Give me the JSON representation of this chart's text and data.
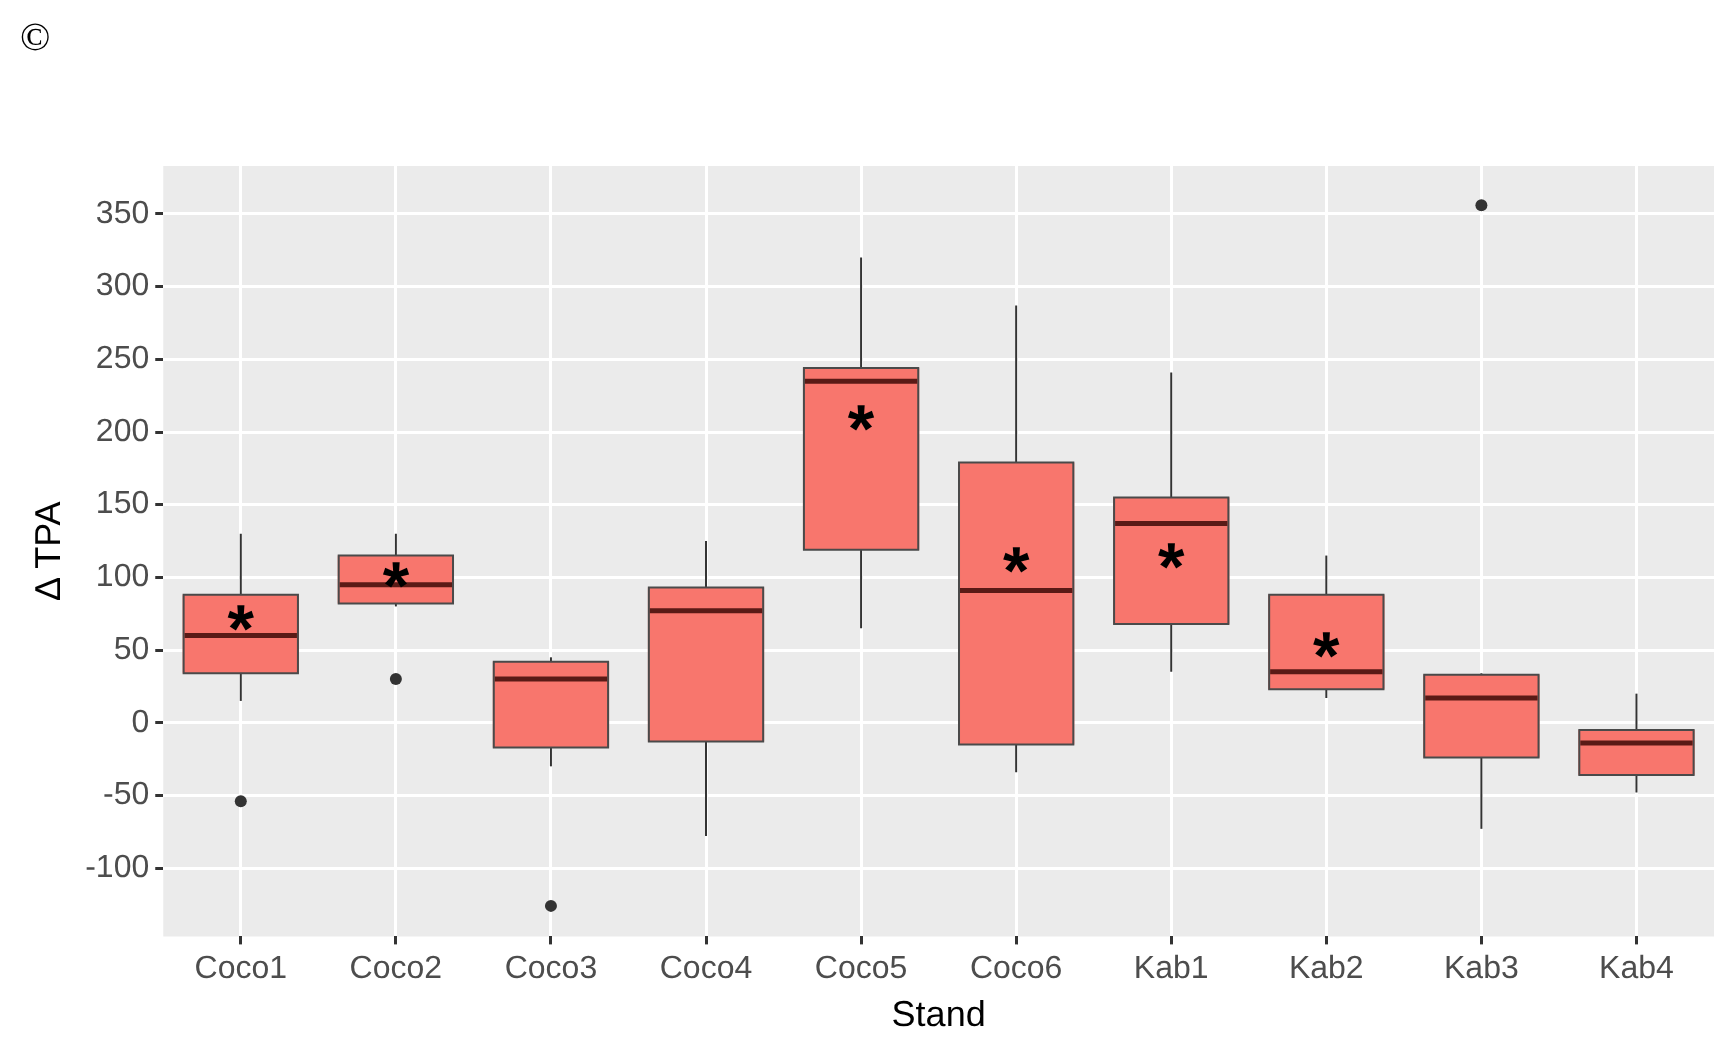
{
  "chart_data": {
    "type": "box",
    "xlabel": "Stand",
    "ylabel": "Δ TPA",
    "categories": [
      "Coco1",
      "Coco2",
      "Coco3",
      "Coco4",
      "Coco5",
      "Coco6",
      "Kab1",
      "Kab2",
      "Kab3",
      "Kab4"
    ],
    "series": [
      {
        "color": "#f8766d",
        "boxes": [
          {
            "low": 15,
            "q1": 34,
            "median": 60,
            "q3": 88,
            "high": 130,
            "outliers": [
              -54
            ]
          },
          {
            "low": 80,
            "q1": 82,
            "median": 95,
            "q3": 115,
            "high": 130,
            "outliers": [
              30
            ]
          },
          {
            "low": -30,
            "q1": -17,
            "median": 30,
            "q3": 42,
            "high": 45,
            "outliers": [
              -126
            ]
          },
          {
            "low": -78,
            "q1": -13,
            "median": 77,
            "q3": 93,
            "high": 125
          },
          {
            "low": 65,
            "q1": 119,
            "median": 235,
            "q3": 244,
            "high": 320
          },
          {
            "low": -34,
            "q1": -15,
            "median": 91,
            "q3": 179,
            "high": 287
          },
          {
            "low": 35,
            "q1": 68,
            "median": 137,
            "q3": 155,
            "high": 241
          },
          {
            "low": 17,
            "q1": 23,
            "median": 35,
            "q3": 88,
            "high": 115
          },
          {
            "low": -73,
            "q1": -24,
            "median": 17,
            "q3": 33,
            "high": 34,
            "outliers": [
              356
            ]
          },
          {
            "low": -48,
            "q1": -36,
            "median": -14,
            "q3": -5,
            "high": 20
          }
        ]
      }
    ],
    "ylim": [
      -147,
      383
    ],
    "yticks": [
      -100,
      -50,
      0,
      50,
      100,
      150,
      200,
      250,
      300,
      350
    ],
    "grid": true,
    "legend": false,
    "annotations": [
      "©",
      {
        "text": "*",
        "x": "Coco1",
        "y": 75
      },
      {
        "text": "*",
        "x": "Coco2",
        "y": 105
      },
      {
        "text": "*",
        "x": "Coco5",
        "y": 213
      },
      {
        "text": "*",
        "x": "Coco6",
        "y": 115
      },
      {
        "text": "*",
        "x": "Kab1",
        "y": 118
      },
      {
        "text": "*",
        "x": "Kab2",
        "y": 57
      }
    ]
  }
}
